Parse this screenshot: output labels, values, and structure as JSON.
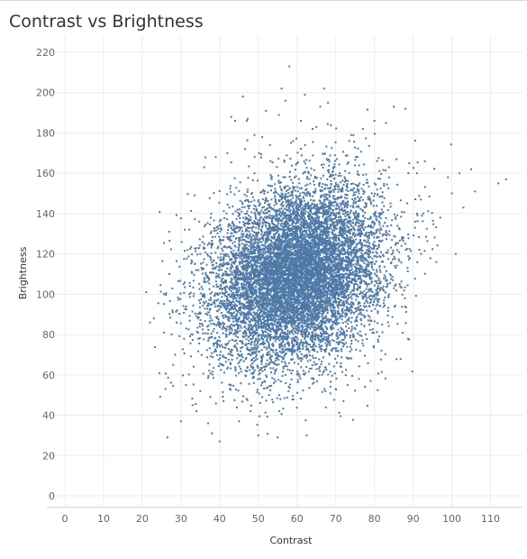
{
  "chart_data": {
    "type": "scatter",
    "title": "Contrast vs Brightness",
    "xlabel": "Contrast",
    "ylabel": "Brightness",
    "xlim": [
      0,
      115
    ],
    "ylim": [
      0,
      220
    ],
    "x_ticks": [
      0,
      10,
      20,
      30,
      40,
      50,
      60,
      70,
      80,
      90,
      100,
      110
    ],
    "x_tick_labels": [
      "0",
      "10",
      "20",
      "30",
      "40",
      "50",
      "60",
      "70",
      "80",
      "90",
      "100",
      "110"
    ],
    "y_ticks": [
      0,
      20,
      40,
      60,
      80,
      100,
      120,
      140,
      160,
      180,
      200,
      220
    ],
    "y_tick_labels": [
      "0",
      "20",
      "40",
      "60",
      "80",
      "100",
      "120",
      "140",
      "160",
      "180",
      "200",
      "220"
    ],
    "grid": true,
    "marker_color": "#4e79a7",
    "series": [
      {
        "values": [
          [
            21,
            101
          ],
          [
            22,
            86
          ],
          [
            23,
            88
          ],
          [
            26,
            53
          ],
          [
            26.5,
            29
          ],
          [
            27,
            110
          ],
          [
            28,
            65
          ],
          [
            28.5,
            70
          ],
          [
            29,
            92
          ],
          [
            30,
            37
          ],
          [
            31,
            132
          ],
          [
            33,
            45
          ],
          [
            34,
            42
          ],
          [
            35,
            52
          ],
          [
            36,
            163
          ],
          [
            37,
            36
          ],
          [
            38,
            31
          ],
          [
            39,
            168
          ],
          [
            40,
            27
          ],
          [
            41,
            47
          ],
          [
            42,
            170
          ],
          [
            43,
            188
          ],
          [
            44,
            186
          ],
          [
            45,
            37
          ],
          [
            46,
            198
          ],
          [
            47,
            186
          ],
          [
            48,
            42
          ],
          [
            49,
            179
          ],
          [
            50,
            30
          ],
          [
            51,
            178
          ],
          [
            52,
            191
          ],
          [
            53,
            174
          ],
          [
            55,
            29
          ],
          [
            56,
            202
          ],
          [
            57,
            196
          ],
          [
            58,
            213
          ],
          [
            59,
            176
          ],
          [
            61,
            186
          ],
          [
            62,
            199
          ],
          [
            62.5,
            30
          ],
          [
            64,
            182
          ],
          [
            65,
            183
          ],
          [
            66,
            193
          ],
          [
            67,
            202
          ],
          [
            68,
            195
          ],
          [
            70,
            53
          ],
          [
            72,
            47
          ],
          [
            74,
            179
          ],
          [
            76,
            58
          ],
          [
            77,
            182
          ],
          [
            79,
            57
          ],
          [
            80,
            186
          ],
          [
            83,
            185
          ],
          [
            85,
            193
          ],
          [
            88,
            192
          ],
          [
            89,
            165
          ],
          [
            91,
            160
          ],
          [
            92,
            147
          ],
          [
            93,
            166
          ],
          [
            96,
            116
          ],
          [
            97,
            138
          ],
          [
            99,
            158
          ],
          [
            100,
            150
          ],
          [
            101,
            120
          ],
          [
            102,
            160
          ],
          [
            103,
            143
          ],
          [
            105,
            162
          ],
          [
            106,
            151
          ],
          [
            112,
            155
          ],
          [
            114,
            157
          ],
          [
            55,
            112
          ],
          [
            60,
            105
          ],
          [
            62,
            98
          ],
          [
            58,
            120
          ],
          [
            64,
            110
          ],
          [
            66,
            95
          ],
          [
            52,
            118
          ],
          [
            70,
            128
          ],
          [
            48,
            102
          ],
          [
            57,
            88
          ],
          [
            63,
            80
          ],
          [
            68,
            108
          ],
          [
            54,
            132
          ],
          [
            61,
            140
          ],
          [
            74,
            115
          ],
          [
            45,
            125
          ],
          [
            78,
            98
          ],
          [
            59,
            75
          ],
          [
            50,
            90
          ],
          [
            66,
            145
          ],
          [
            72,
            135
          ],
          [
            40,
            112
          ],
          [
            80,
            130
          ],
          [
            56,
            150
          ],
          [
            63,
            160
          ],
          [
            69,
            72
          ],
          [
            53,
            70
          ],
          [
            84,
            110
          ],
          [
            38,
            95
          ],
          [
            47,
            140
          ],
          [
            76,
            150
          ],
          [
            88,
            125
          ],
          [
            35,
            120
          ],
          [
            60,
            165
          ],
          [
            43,
            85
          ],
          [
            82,
            85
          ],
          [
            67,
            62
          ],
          [
            57,
            60
          ],
          [
            33,
            80
          ],
          [
            91,
            140
          ],
          [
            71,
            160
          ],
          [
            49,
            160
          ]
        ]
      }
    ],
    "point_count": 10000
  }
}
